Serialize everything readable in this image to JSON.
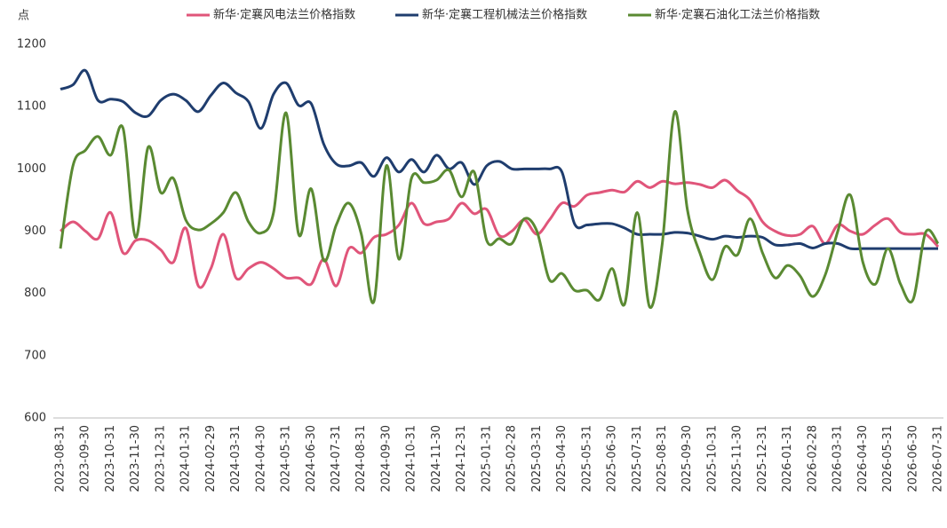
{
  "chart_data": {
    "type": "line",
    "y_label": "点",
    "categories": [
      "2023-08-31",
      null,
      "2023-09-30",
      null,
      "2023-10-31",
      null,
      "2023-11-30",
      null,
      "2023-12-31",
      null,
      "2024-01-31",
      null,
      "2024-02-29",
      null,
      "2024-03-31",
      null,
      "2024-04-30",
      null,
      "2024-05-31",
      null,
      "2024-06-30",
      null,
      "2024-07-31",
      null,
      "2024-08-31",
      null,
      "2024-09-30",
      null,
      "2024-10-31",
      null,
      "2024-11-30",
      null,
      "2024-12-31",
      null,
      "2025-01-31",
      null,
      "2025-02-28",
      null,
      "2025-03-31",
      null,
      "2025-04-30",
      null,
      "2025-05-31",
      null,
      "2025-06-30",
      null,
      "2025-07-31",
      null,
      "2025-08-31",
      null,
      "2025-09-30",
      null,
      "2025-10-31",
      null,
      "2025-11-30",
      null,
      "2025-12-31",
      null,
      "2026-01-31",
      null,
      "2026-02-28",
      null,
      "2026-03-31",
      null,
      "2026-04-30",
      null,
      "2026-05-31",
      null,
      "2026-06-30",
      null,
      "2026-07-31"
    ],
    "series": [
      {
        "name": "新华·定襄风电法兰价格指数",
        "color": "#e0557a",
        "values": [
          900,
          915,
          900,
          888,
          930,
          865,
          885,
          885,
          870,
          850,
          905,
          812,
          840,
          895,
          825,
          840,
          850,
          840,
          825,
          825,
          815,
          855,
          812,
          872,
          865,
          890,
          895,
          910,
          945,
          912,
          915,
          920,
          945,
          928,
          935,
          893,
          900,
          918,
          895,
          918,
          945,
          940,
          958,
          962,
          966,
          963,
          980,
          970,
          980,
          976,
          978,
          975,
          970,
          982,
          965,
          950,
          915,
          900,
          893,
          895,
          908,
          880,
          910,
          900,
          895,
          910,
          920,
          898,
          895,
          895,
          875
        ]
      },
      {
        "name": "新华·定襄工程机械法兰价格指数",
        "color": "#1f3d6e",
        "values": [
          1128,
          1135,
          1158,
          1110,
          1112,
          1108,
          1090,
          1085,
          1110,
          1120,
          1110,
          1092,
          1118,
          1138,
          1122,
          1108,
          1065,
          1120,
          1138,
          1102,
          1105,
          1040,
          1008,
          1005,
          1010,
          988,
          1018,
          995,
          1015,
          995,
          1022,
          1000,
          1010,
          975,
          1005,
          1012,
          1000,
          1000,
          1000,
          1000,
          995,
          912,
          910,
          912,
          912,
          905,
          895,
          895,
          895,
          898,
          897,
          892,
          887,
          892,
          890,
          892,
          890,
          878,
          878,
          880,
          873,
          880,
          880,
          872,
          872,
          872,
          872,
          872,
          872,
          872,
          872
        ]
      },
      {
        "name": "新华·定襄石油化工法兰价格指数",
        "color": "#5a8a32",
        "values": [
          872,
          1005,
          1030,
          1052,
          1022,
          1065,
          890,
          1035,
          962,
          985,
          918,
          902,
          912,
          930,
          962,
          915,
          897,
          930,
          1090,
          895,
          968,
          853,
          910,
          945,
          895,
          787,
          1005,
          855,
          985,
          978,
          982,
          998,
          955,
          995,
          885,
          888,
          880,
          920,
          900,
          822,
          832,
          805,
          805,
          790,
          840,
          783,
          930,
          778,
          880,
          1092,
          935,
          865,
          822,
          875,
          862,
          920,
          865,
          825,
          845,
          828,
          795,
          830,
          900,
          958,
          850,
          815,
          872,
          815,
          790,
          898,
          880
        ]
      }
    ],
    "ylim": [
      600,
      1200
    ],
    "yticks": [
      600,
      700,
      800,
      900,
      1000,
      1100,
      1200
    ]
  }
}
